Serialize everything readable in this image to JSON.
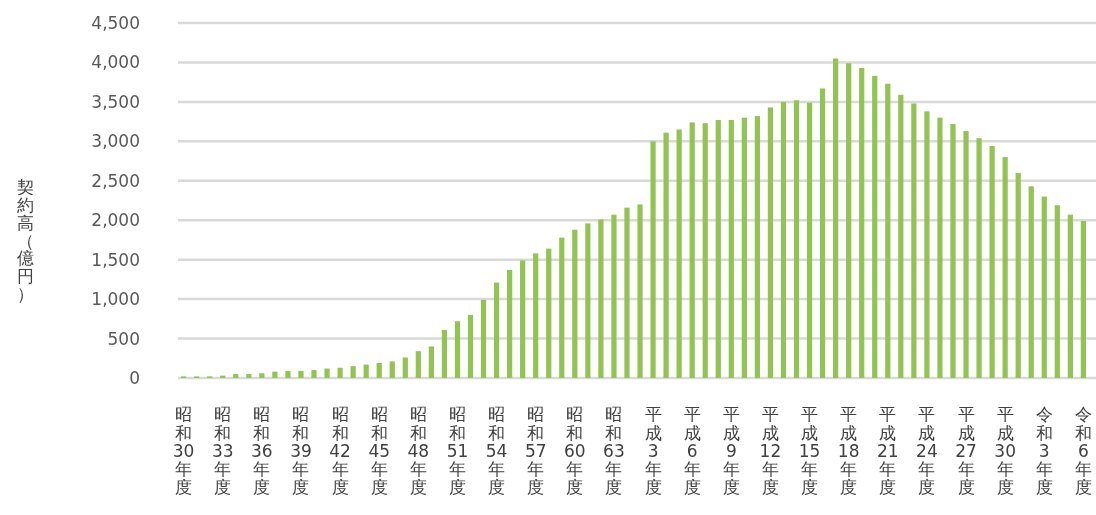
{
  "chart_data": {
    "type": "bar",
    "ylabel": "契約高（億円）",
    "categories": [
      "昭和30年度",
      null,
      null,
      "昭和33年度",
      null,
      null,
      "昭和36年度",
      null,
      null,
      "昭和39年度",
      null,
      null,
      "昭和42年度",
      null,
      null,
      "昭和45年度",
      null,
      null,
      "昭和48年度",
      null,
      null,
      "昭和51年度",
      null,
      null,
      "昭和54年度",
      null,
      null,
      "昭和57年度",
      null,
      null,
      "昭和60年度",
      null,
      null,
      "昭和63年度",
      null,
      null,
      "平成3年度",
      null,
      null,
      "平成6年度",
      null,
      null,
      "平成9年度",
      null,
      null,
      "平成12年度",
      null,
      null,
      "平成15年度",
      null,
      null,
      "平成18年度",
      null,
      null,
      "平成21年度",
      null,
      null,
      "平成24年度",
      null,
      null,
      "平成27年度",
      null,
      null,
      "平成30年度",
      null,
      null,
      "令和3年度",
      null,
      null,
      "令和6年度"
    ],
    "values": [
      20,
      20,
      20,
      30,
      50,
      50,
      60,
      80,
      90,
      90,
      100,
      120,
      130,
      150,
      170,
      190,
      210,
      260,
      340,
      400,
      610,
      720,
      800,
      990,
      1210,
      1370,
      1490,
      1580,
      1640,
      1780,
      1880,
      1960,
      2010,
      2070,
      2160,
      2200,
      3000,
      3110,
      3150,
      3240,
      3230,
      3270,
      3270,
      3300,
      3320,
      3430,
      3500,
      3520,
      3490,
      3670,
      4050,
      3990,
      3930,
      3830,
      3730,
      3590,
      3480,
      3380,
      3300,
      3220,
      3130,
      3040,
      2940,
      2800,
      2600,
      2430,
      2300,
      2190,
      2070,
      1990
    ],
    "color": "#92c353",
    "ylim": [
      0,
      4500
    ],
    "yticks": [
      {
        "value": 0,
        "label": "0"
      },
      {
        "value": 500,
        "label": "500"
      },
      {
        "value": 1000,
        "label": "1,000"
      },
      {
        "value": 1500,
        "label": "1,500"
      },
      {
        "value": 2000,
        "label": "2,000"
      },
      {
        "value": 2500,
        "label": "2,500"
      },
      {
        "value": 3000,
        "label": "3,000"
      },
      {
        "value": 3500,
        "label": "3,500"
      },
      {
        "value": 4000,
        "label": "4,000"
      },
      {
        "value": 4500,
        "label": "4,500"
      }
    ],
    "grid": "y"
  }
}
